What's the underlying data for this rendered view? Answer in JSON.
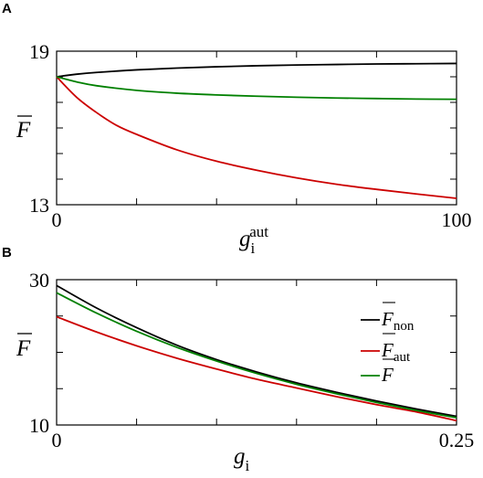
{
  "chart_data": [
    {
      "panel_label": "A",
      "type": "line",
      "xlabel": "g",
      "xlabel_sub": "i",
      "xlabel_sup": "aut",
      "ylabel": "F",
      "xlim": [
        0,
        100
      ],
      "ylim": [
        13,
        19
      ],
      "xticks_labeled": [
        "0",
        "100"
      ],
      "yticks_labeled": [
        "19",
        "13"
      ],
      "minor_xticks": [
        20,
        40,
        60,
        80
      ],
      "minor_yticks": [
        14,
        15,
        16,
        17,
        18
      ],
      "grid": false,
      "legend": null,
      "series": [
        {
          "color": "#000000",
          "x": [
            0,
            5,
            10,
            20,
            30,
            40,
            50,
            60,
            70,
            80,
            90,
            100
          ],
          "y": [
            18.0,
            18.1,
            18.17,
            18.27,
            18.34,
            18.39,
            18.43,
            18.46,
            18.48,
            18.5,
            18.51,
            18.52
          ]
        },
        {
          "color": "#cc0000",
          "x": [
            0,
            5,
            10,
            15,
            20,
            30,
            40,
            50,
            60,
            70,
            80,
            90,
            100
          ],
          "y": [
            18.0,
            17.2,
            16.6,
            16.1,
            15.75,
            15.15,
            14.7,
            14.35,
            14.05,
            13.8,
            13.6,
            13.42,
            13.25
          ]
        },
        {
          "color": "#008000",
          "x": [
            0,
            5,
            10,
            20,
            30,
            40,
            50,
            60,
            70,
            80,
            90,
            100
          ],
          "y": [
            18.0,
            17.8,
            17.65,
            17.47,
            17.36,
            17.29,
            17.24,
            17.2,
            17.17,
            17.15,
            17.13,
            17.12
          ]
        }
      ]
    },
    {
      "panel_label": "B",
      "type": "line",
      "xlabel": "g",
      "xlabel_sub": "i",
      "ylabel": "F",
      "xlim": [
        0,
        0.25
      ],
      "ylim": [
        10,
        30
      ],
      "xticks_labeled": [
        "0",
        "0.25"
      ],
      "yticks_labeled": [
        "30",
        "10"
      ],
      "minor_xticks": [
        0.05,
        0.1,
        0.15,
        0.2
      ],
      "minor_yticks": [
        15,
        20,
        25
      ],
      "grid": false,
      "legend": {
        "position": "right",
        "entries": [
          {
            "symbol": "F",
            "sub": "non",
            "color": "#000000"
          },
          {
            "symbol": "F",
            "sub": "aut",
            "color": "#cc0000"
          },
          {
            "symbol": "F",
            "sub": "",
            "color": "#008000"
          }
        ]
      },
      "series": [
        {
          "color": "#000000",
          "x": [
            0,
            0.025,
            0.05,
            0.075,
            0.1,
            0.125,
            0.15,
            0.175,
            0.2,
            0.225,
            0.25
          ],
          "y": [
            29.2,
            26.1,
            23.4,
            21.0,
            19.0,
            17.3,
            15.8,
            14.5,
            13.3,
            12.2,
            11.2
          ]
        },
        {
          "color": "#cc0000",
          "x": [
            0,
            0.025,
            0.05,
            0.075,
            0.1,
            0.125,
            0.15,
            0.175,
            0.2,
            0.225,
            0.25
          ],
          "y": [
            24.9,
            22.8,
            20.9,
            19.2,
            17.7,
            16.3,
            15.1,
            13.9,
            12.8,
            11.8,
            10.6
          ]
        },
        {
          "color": "#008000",
          "x": [
            0,
            0.025,
            0.05,
            0.075,
            0.1,
            0.125,
            0.15,
            0.175,
            0.2,
            0.225,
            0.25
          ],
          "y": [
            28.2,
            25.4,
            22.9,
            20.7,
            18.8,
            17.1,
            15.6,
            14.3,
            13.1,
            12.0,
            11.0
          ]
        }
      ]
    }
  ]
}
